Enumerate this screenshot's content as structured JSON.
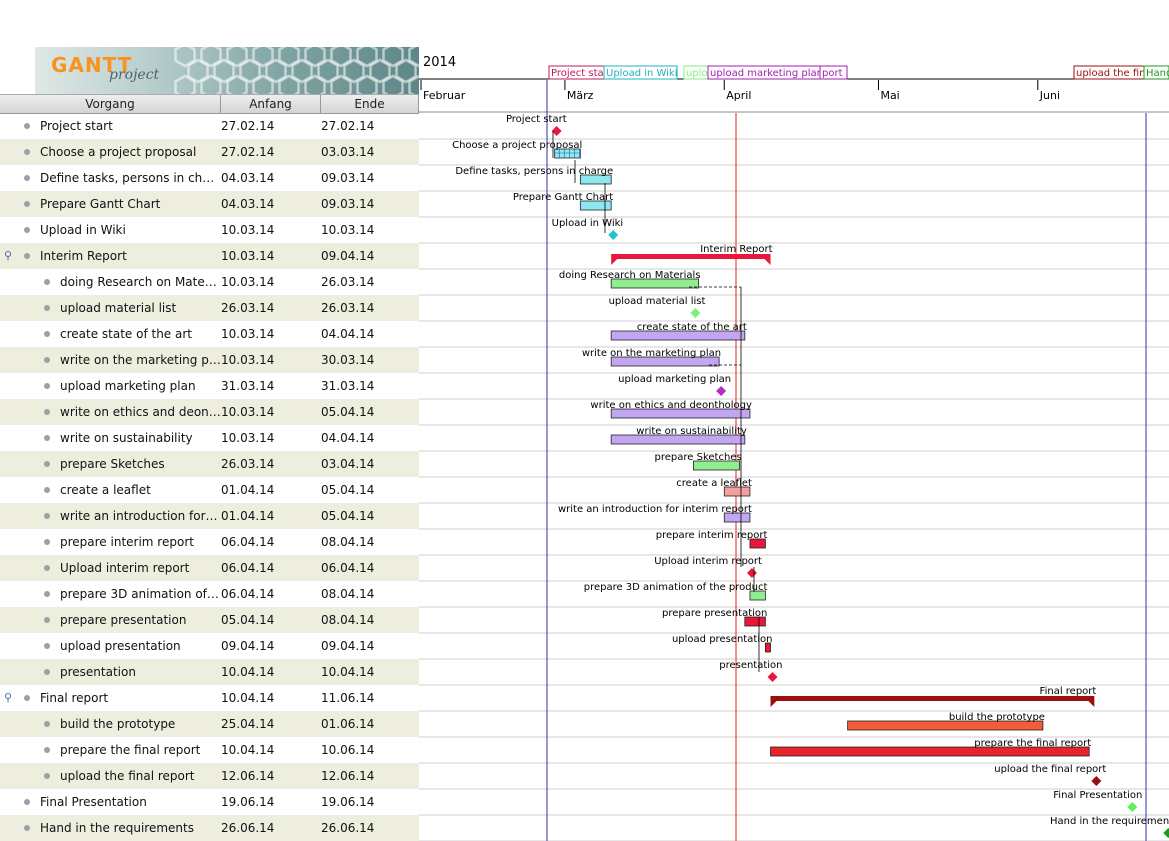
{
  "app": {
    "logo_text": "GANTT",
    "logo_sub": "project"
  },
  "columns": {
    "task": "Vorgang",
    "start": "Anfang",
    "end": "Ende"
  },
  "timeline": {
    "year": "2014",
    "months": [
      "Februar",
      "März",
      "April",
      "Mai",
      "Juni"
    ],
    "milestones": [
      "Project sta",
      "Upload in Wiki",
      "uplo",
      "upload marketing plan",
      "port",
      "upload the fin",
      "Hand"
    ]
  },
  "tasks": [
    {
      "name": "Project start",
      "start": "27.02.14",
      "end": "27.02.14",
      "level": 0,
      "label": "Project start",
      "type": "milestone",
      "color": "#e8174a"
    },
    {
      "name": "Choose a project proposal",
      "start": "27.02.14",
      "end": "03.03.14",
      "level": 0,
      "label": "Choose a project proposal",
      "type": "bar",
      "color": "#8fe8f0"
    },
    {
      "name": "Define tasks, persons in char…",
      "start": "04.03.14",
      "end": "09.03.14",
      "level": 0,
      "label": "Define tasks, persons in charge",
      "type": "bar",
      "color": "#8fe8f0"
    },
    {
      "name": "Prepare Gantt Chart",
      "start": "04.03.14",
      "end": "09.03.14",
      "level": 0,
      "label": "Prepare Gantt Chart",
      "type": "bar",
      "color": "#8fe8f0"
    },
    {
      "name": "Upload in Wiki",
      "start": "10.03.14",
      "end": "10.03.14",
      "level": 0,
      "label": "Upload in Wiki",
      "type": "milestone",
      "color": "#22c4c8"
    },
    {
      "name": "Interim Report",
      "start": "10.03.14",
      "end": "09.04.14",
      "level": 0,
      "label": "Interim Report",
      "type": "summary",
      "color": "#e8173c",
      "expanded": true
    },
    {
      "name": "doing Research on Materi…",
      "start": "10.03.14",
      "end": "26.03.14",
      "level": 1,
      "label": "doing Research on Materials",
      "type": "bar",
      "color": "#90ee90"
    },
    {
      "name": "upload material list",
      "start": "26.03.14",
      "end": "26.03.14",
      "level": 1,
      "label": "upload material list",
      "type": "milestone",
      "color": "#7cf07c"
    },
    {
      "name": "create state of the art",
      "start": "10.03.14",
      "end": "04.04.14",
      "level": 1,
      "label": "create state of the art",
      "type": "bar",
      "color": "#c3a6f2"
    },
    {
      "name": "write on the marketing plan",
      "start": "10.03.14",
      "end": "30.03.14",
      "level": 1,
      "label": "write on the marketing plan",
      "type": "bar",
      "color": "#c3a6f2"
    },
    {
      "name": "upload marketing plan",
      "start": "31.03.14",
      "end": "31.03.14",
      "level": 1,
      "label": "upload marketing plan",
      "type": "milestone",
      "color": "#b52cc2"
    },
    {
      "name": "write on ethics and deont…",
      "start": "10.03.14",
      "end": "05.04.14",
      "level": 1,
      "label": "write on ethics and deonthology",
      "type": "bar",
      "color": "#c3a6f2"
    },
    {
      "name": "write on sustainability",
      "start": "10.03.14",
      "end": "04.04.14",
      "level": 1,
      "label": "write on sustainability",
      "type": "bar",
      "color": "#c3a6f2"
    },
    {
      "name": "prepare Sketches",
      "start": "26.03.14",
      "end": "03.04.14",
      "level": 1,
      "label": "prepare Sketches",
      "type": "bar",
      "color": "#90ee90"
    },
    {
      "name": "create a leaflet",
      "start": "01.04.14",
      "end": "05.04.14",
      "level": 1,
      "label": "create a leaflet",
      "type": "bar",
      "color": "#f5a0a0"
    },
    {
      "name": "write an introduction for i…",
      "start": "01.04.14",
      "end": "05.04.14",
      "level": 1,
      "label": "write an introduction for interim report",
      "type": "bar",
      "color": "#c3a6f2"
    },
    {
      "name": "prepare interim report",
      "start": "06.04.14",
      "end": "08.04.14",
      "level": 1,
      "label": "prepare interim report",
      "type": "bar",
      "color": "#e8173c"
    },
    {
      "name": "Upload interim report",
      "start": "06.04.14",
      "end": "06.04.14",
      "level": 1,
      "label": "Upload interim report",
      "type": "milestone",
      "color": "#e8173c"
    },
    {
      "name": "prepare 3D animation of…",
      "start": "06.04.14",
      "end": "08.04.14",
      "level": 1,
      "label": "prepare 3D animation of the product",
      "type": "bar",
      "color": "#90ee90"
    },
    {
      "name": "prepare presentation",
      "start": "05.04.14",
      "end": "08.04.14",
      "level": 1,
      "label": "prepare presentation",
      "type": "bar",
      "color": "#e8173c"
    },
    {
      "name": "upload presentation",
      "start": "09.04.14",
      "end": "09.04.14",
      "level": 1,
      "label": "upload presentation",
      "type": "bar",
      "color": "#e8173c"
    },
    {
      "name": "presentation",
      "start": "10.04.14",
      "end": "10.04.14",
      "level": 1,
      "label": "presentation",
      "type": "milestone",
      "color": "#e8173c"
    },
    {
      "name": "Final report",
      "start": "10.04.14",
      "end": "11.06.14",
      "level": 0,
      "label": "Final report",
      "type": "summary",
      "color": "#9b0f0f",
      "expanded": true
    },
    {
      "name": "build the prototype",
      "start": "25.04.14",
      "end": "01.06.14",
      "level": 1,
      "label": "build the prototype",
      "type": "bar",
      "color": "#f25c3a"
    },
    {
      "name": "prepare the final report",
      "start": "10.04.14",
      "end": "10.06.14",
      "level": 1,
      "label": "prepare the final report",
      "type": "bar",
      "color": "#e8232a"
    },
    {
      "name": "upload the final report",
      "start": "12.06.14",
      "end": "12.06.14",
      "level": 1,
      "label": "upload the final report",
      "type": "milestone",
      "color": "#9b0f0f"
    },
    {
      "name": "Final Presentation",
      "start": "19.06.14",
      "end": "19.06.14",
      "level": 0,
      "label": "Final Presentation",
      "type": "milestone",
      "color": "#5ef05e"
    },
    {
      "name": "Hand in the requirements",
      "start": "26.06.14",
      "end": "26.06.14",
      "level": 0,
      "label": "Hand in the requirements",
      "type": "milestone",
      "color": "#1a9a1a"
    }
  ]
}
